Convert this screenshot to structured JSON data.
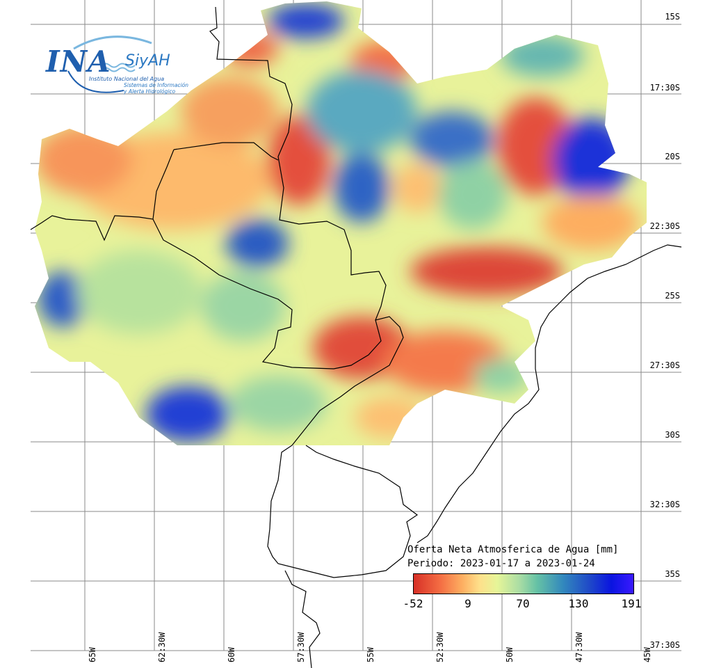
{
  "logo": {
    "ina_text": "INA",
    "siyah_text": "SiyAH",
    "institute": "Instituto Nacional del Agua",
    "system_line1": "Sistemas de Información",
    "system_line2": "y Alerta Hidrológico",
    "brand_color": "#1f5fae"
  },
  "legend": {
    "title": "Oferta Neta Atmosferica de Agua [mm]",
    "period": "Periodo: 2023-01-17 a 2023-01-24",
    "ticks": [
      "-52",
      "9",
      "70",
      "130",
      "191"
    ],
    "range": [
      -52,
      191
    ],
    "colormap": [
      "#d73027",
      "#fdae61",
      "#fee08b",
      "#abdda4",
      "#66c2a5",
      "#3288bd",
      "#0a14e0",
      "#3a1aff"
    ]
  },
  "axes": {
    "lat_labels": [
      "15S",
      "17:30S",
      "20S",
      "22:30S",
      "25S",
      "27:30S",
      "30S",
      "32:30S",
      "35S",
      "37:30S"
    ],
    "lon_labels": [
      "65W",
      "62:30W",
      "60W",
      "57:30W",
      "55W",
      "52:30W",
      "50W",
      "47:30W",
      "45W"
    ]
  }
}
